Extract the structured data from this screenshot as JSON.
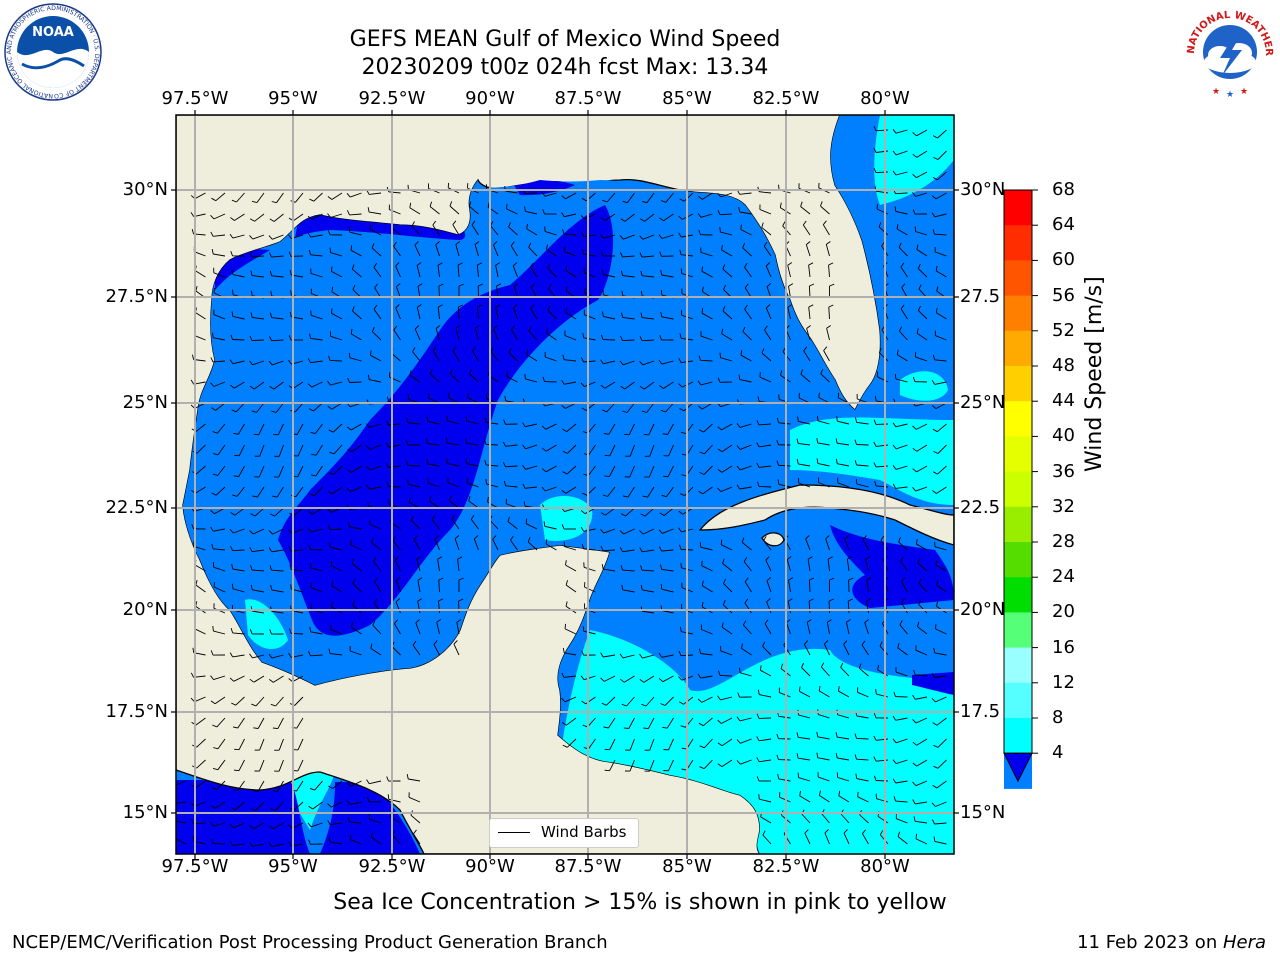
{
  "title_line1": "GEFS MEAN Gulf of Mexico Wind Speed",
  "title_line2": "20230209 t00z 024h fcst   Max: 13.34",
  "longitude_labels": [
    "97.5°W",
    "95°W",
    "92.5°W",
    "90°W",
    "87.5°W",
    "85°W",
    "82.5°W",
    "80°W"
  ],
  "latitude_labels_left": [
    "30°N",
    "27.5°N",
    "25°N",
    "22.5°N",
    "20°N",
    "17.5°N",
    "15°N"
  ],
  "latitude_labels_right": [
    "30°N",
    "27.5",
    "25°N",
    "22.5",
    "20°N",
    "17.5",
    "15°N"
  ],
  "legend_label": "Wind Barbs",
  "colorbar": {
    "label": "Wind Speed [m/s]",
    "ticks": [
      "68",
      "64",
      "60",
      "56",
      "52",
      "48",
      "44",
      "40",
      "36",
      "32",
      "28",
      "24",
      "20",
      "16",
      "12",
      "8",
      "4"
    ],
    "colors": [
      "#ff0000",
      "#ff2d00",
      "#ff5500",
      "#ff8000",
      "#ffaa00",
      "#ffd000",
      "#ffff00",
      "#e6ff00",
      "#ccff00",
      "#99ee00",
      "#55dd00",
      "#00dd00",
      "#55ff77",
      "#99ffff",
      "#55ffff",
      "#00ffff",
      "#0080ff"
    ],
    "under_color": "#0000ee"
  },
  "map_colors": {
    "land": "#efeddc",
    "level_4_8": "#0080ff",
    "level_below_4": "#0000ee",
    "level_8_12": "#00ffff",
    "level_12_16": "#55ffff"
  },
  "note": "Sea Ice Concentration > 15% is shown in pink to yellow",
  "footer_left": "NCEP/EMC/Verification Post Processing Product Generation Branch",
  "footer_right_prefix": "11 Feb 2023 on ",
  "footer_right_host": "Hera",
  "logo_noaa": {
    "text": "NOAA",
    "ring": "NATIONAL OCEANIC AND ATMOSPHERIC ADMINISTRATION · U.S. DEPARTMENT OF COMMERCE"
  },
  "logo_nws": {
    "ring": "NATIONAL WEATHER SERVICE"
  }
}
